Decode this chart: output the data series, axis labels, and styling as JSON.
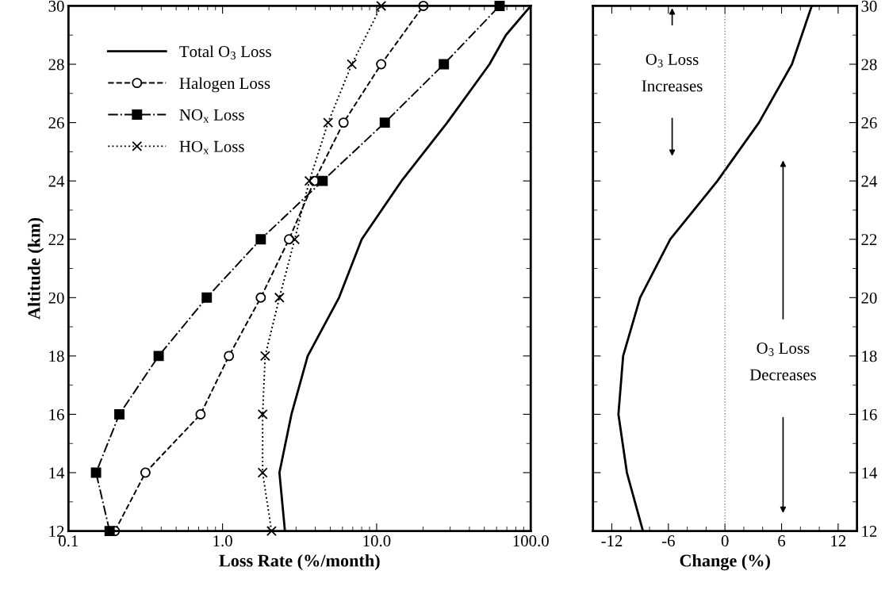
{
  "chart_data": [
    {
      "type": "line",
      "xlabel": "Loss Rate (%/month)",
      "ylabel": "Altitude (km)",
      "log": "x",
      "xlim": [
        0.1,
        100
      ],
      "xticks": [
        {
          "value": 0.1,
          "label": "0.1"
        },
        {
          "value": 1,
          "label": "1.0"
        },
        {
          "value": 10,
          "label": "10.0"
        },
        {
          "value": 100,
          "label": "100.0"
        }
      ],
      "ylim": [
        12,
        30
      ],
      "yticks": [
        12,
        14,
        16,
        18,
        20,
        22,
        24,
        26,
        28,
        30
      ],
      "grid": false,
      "legend": "top left",
      "series": [
        {
          "name": "Total O$_{3}$ Loss",
          "color": "#000000",
          "line_style": "solid",
          "marker": "none",
          "x": [
            2.54,
            2.34,
            2.8,
            3.57,
            5.7,
            8.0,
            14.5,
            28.7,
            54,
            69,
            100
          ],
          "values": [
            12,
            14,
            16,
            18,
            20,
            22,
            24,
            26,
            28,
            29,
            30
          ]
        },
        {
          "name": "Halogen Loss",
          "color": "#000000",
          "line_style": "dashed",
          "marker": "circle",
          "x": [
            0.2,
            0.316,
            0.72,
            1.1,
            1.77,
            2.7,
            3.94,
            6.1,
            10.7,
            20.1
          ],
          "values": [
            12,
            14,
            16,
            18,
            20,
            22,
            24,
            26,
            28,
            30
          ]
        },
        {
          "name": "NO$_{x}$ Loss",
          "color": "#000000",
          "line_style": "dashdot",
          "marker": "square",
          "x": [
            0.185,
            0.151,
            0.214,
            0.385,
            0.79,
            1.77,
            4.46,
            11.3,
            27.3,
            62.8
          ],
          "values": [
            12,
            14,
            16,
            18,
            20,
            22,
            24,
            26,
            28,
            30
          ]
        },
        {
          "name": "HO$_{x}$ Loss",
          "color": "#000000",
          "line_style": "dotted",
          "marker": "cross",
          "x": [
            2.08,
            1.82,
            1.82,
            1.89,
            2.34,
            2.94,
            3.66,
            4.84,
            6.9,
            10.7
          ],
          "values": [
            12,
            14,
            16,
            18,
            20,
            22,
            24,
            26,
            28,
            30
          ]
        }
      ]
    },
    {
      "type": "line",
      "xlabel": "Change (%)",
      "xlim": [
        -14,
        14
      ],
      "xticks": [
        -12,
        -6,
        0,
        6,
        12
      ],
      "ylim": [
        12,
        30
      ],
      "yticks": [
        12,
        14,
        16,
        18,
        20,
        22,
        24,
        26,
        28,
        30
      ],
      "grid": false,
      "ref_lines": [
        {
          "axis": "x",
          "value": 0,
          "color": "#888888",
          "line_style": "dotted"
        }
      ],
      "annotations": [
        "O$_{3}$ Loss\nIncreases",
        "O$_{3}$ Loss\nDecreases"
      ],
      "series": [
        {
          "color": "#000000",
          "line_style": "solid",
          "marker": "none",
          "x": [
            -8.7,
            -10.4,
            -11.3,
            -10.8,
            -9.0,
            -5.8,
            -0.8,
            3.6,
            7.1,
            9.2
          ],
          "values": [
            12,
            14,
            16,
            18,
            20,
            22,
            24,
            26,
            28,
            30
          ]
        }
      ]
    }
  ]
}
